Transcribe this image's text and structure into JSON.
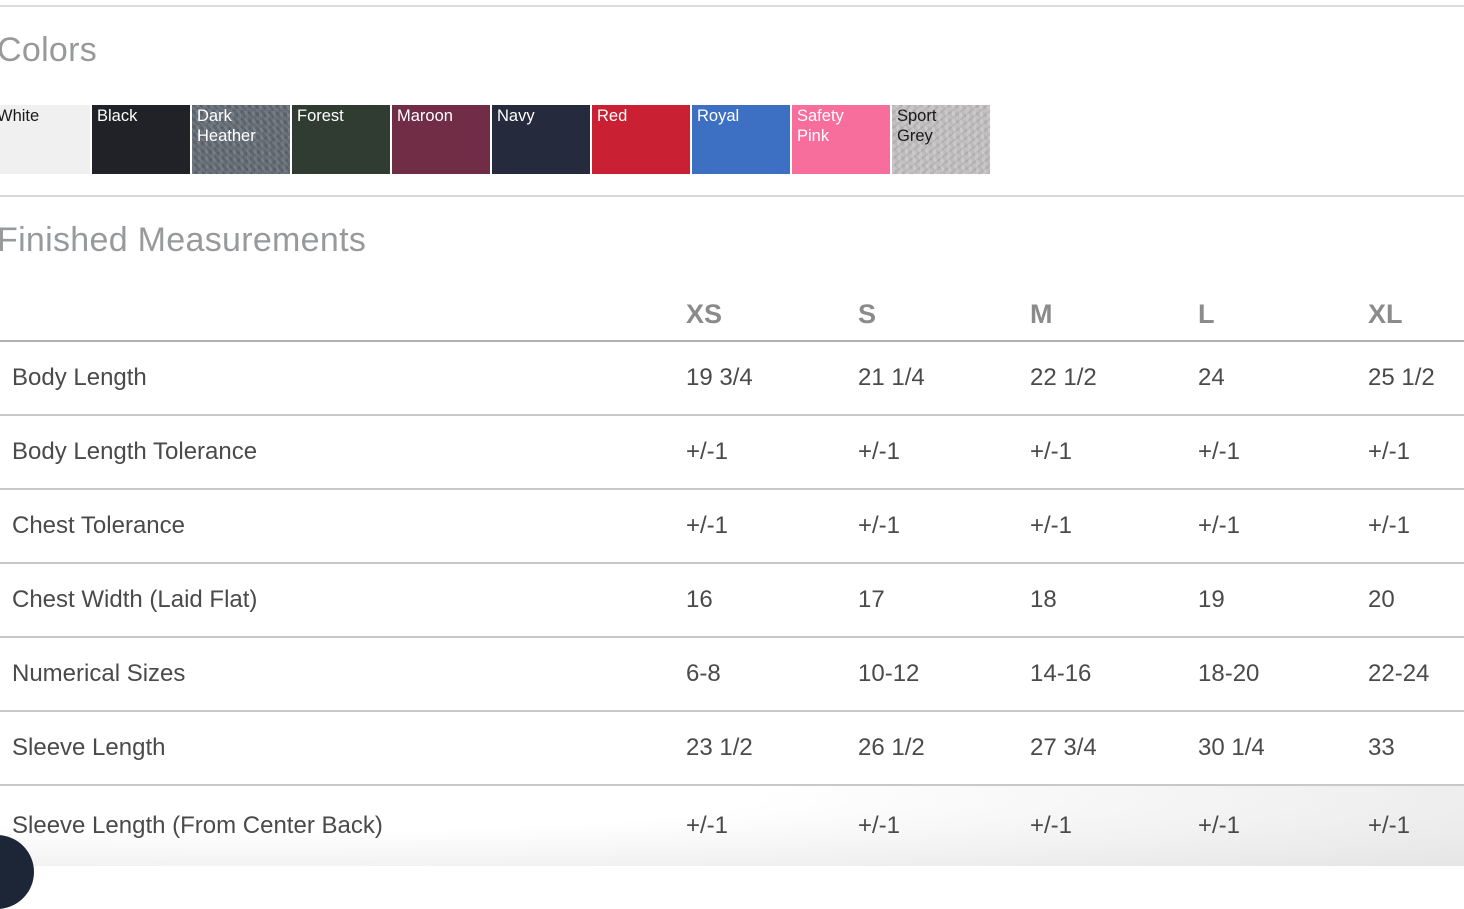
{
  "colors_section": {
    "title": "Colors",
    "swatches": [
      {
        "name": "White",
        "bg": "#f1f0f1",
        "text_color": "#1a1a1a",
        "heather": false
      },
      {
        "name": "Black",
        "bg": "#212227",
        "text_color": "#ffffff",
        "heather": false
      },
      {
        "name": "Dark Heather",
        "bg": "#626a74",
        "text_color": "#ffffff",
        "heather": true
      },
      {
        "name": "Forest",
        "bg": "#303b31",
        "text_color": "#ffffff",
        "heather": false
      },
      {
        "name": "Maroon",
        "bg": "#712d46",
        "text_color": "#ffffff",
        "heather": false
      },
      {
        "name": "Navy",
        "bg": "#252b3d",
        "text_color": "#ffffff",
        "heather": false
      },
      {
        "name": "Red",
        "bg": "#c92133",
        "text_color": "#ffffff",
        "heather": false
      },
      {
        "name": "Royal",
        "bg": "#3d6fc2",
        "text_color": "#ffffff",
        "heather": false
      },
      {
        "name": "Safety Pink",
        "bg": "#f76d9b",
        "text_color": "#ffffff",
        "heather": false
      },
      {
        "name": "Sport Grey",
        "bg": "#c5c2c3",
        "text_color": "#1a1a1a",
        "heather": true
      }
    ]
  },
  "measurements_section": {
    "title": "Finished Measurements",
    "table": {
      "size_columns": [
        "XS",
        "S",
        "M",
        "L",
        "XL"
      ],
      "rows": [
        {
          "label": "Body Length",
          "values": [
            "19 3/4",
            "21 1/4",
            "22 1/2",
            "24",
            "25 1/2"
          ]
        },
        {
          "label": "Body Length Tolerance",
          "values": [
            "+/-1",
            "+/-1",
            "+/-1",
            "+/-1",
            "+/-1"
          ]
        },
        {
          "label": "Chest Tolerance",
          "values": [
            "+/-1",
            "+/-1",
            "+/-1",
            "+/-1",
            "+/-1"
          ]
        },
        {
          "label": "Chest Width (Laid Flat)",
          "values": [
            "16",
            "17",
            "18",
            "19",
            "20"
          ]
        },
        {
          "label": "Numerical Sizes",
          "values": [
            "6-8",
            "10-12",
            "14-16",
            "18-20",
            "22-24"
          ]
        },
        {
          "label": "Sleeve Length",
          "values": [
            "23 1/2",
            "26 1/2",
            "27 3/4",
            "30 1/4",
            "33"
          ]
        },
        {
          "label": "Sleeve Length (From Center Back)",
          "values": [
            "+/-1",
            "+/-1",
            "+/-1",
            "+/-1",
            "+/-1"
          ]
        }
      ]
    }
  },
  "corner_widget": {
    "color": "#1c2636"
  }
}
